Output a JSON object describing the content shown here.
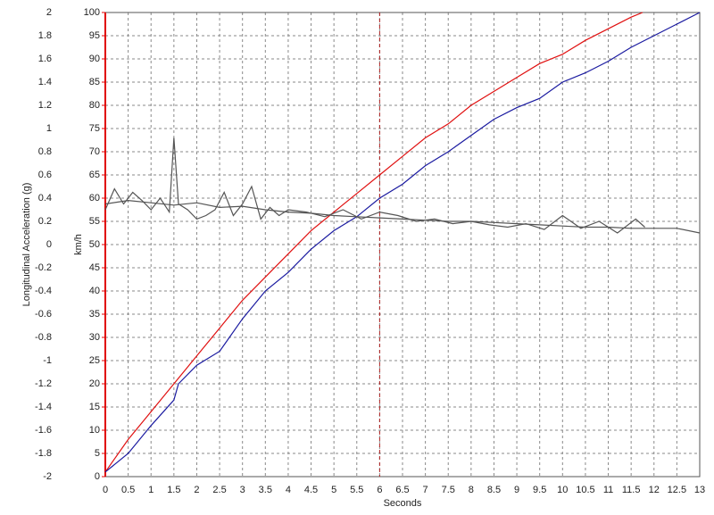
{
  "chart_data": {
    "type": "line",
    "y_label": "Longitudinal Acceleration (g)",
    "y2_label": "km/h",
    "x_label": "Seconds",
    "xlim": [
      0,
      13
    ],
    "ylim": [
      -2,
      2
    ],
    "y2lim": [
      0,
      100
    ],
    "xticks": [
      0,
      0.5,
      1,
      1.5,
      2,
      2.5,
      3,
      3.5,
      4,
      4.5,
      5,
      5.5,
      6,
      6.5,
      7,
      7.5,
      8,
      8.5,
      9,
      9.5,
      10,
      10.5,
      11,
      11.5,
      12,
      12.5,
      13
    ],
    "yticks": [
      -2,
      -1.8,
      -1.6,
      -1.4,
      -1.2,
      -1,
      -0.8,
      -0.6,
      -0.4,
      -0.2,
      0,
      0.2,
      0.4,
      0.6,
      0.8,
      1,
      1.2,
      1.4,
      1.6,
      1.8,
      2
    ],
    "y2ticks": [
      0,
      5,
      10,
      15,
      20,
      25,
      30,
      35,
      40,
      45,
      50,
      55,
      60,
      65,
      70,
      75,
      80,
      85,
      90,
      95,
      100
    ],
    "grid": true,
    "cursor": 6,
    "cursor_color": "#b02020",
    "y2_color": "#e00000",
    "series": [
      {
        "color": "#e01010",
        "axis": "y2",
        "x": [
          0,
          0.5,
          1,
          1.5,
          2,
          2.5,
          3,
          3.5,
          4,
          4.5,
          5,
          5.5,
          6,
          6.5,
          7,
          7.5,
          8,
          8.5,
          9,
          9.5,
          10,
          10.5,
          11,
          11.5,
          11.75
        ],
        "values": [
          1,
          8,
          14,
          20,
          26,
          32,
          38,
          43,
          48,
          53,
          57,
          61,
          65,
          69,
          73,
          76,
          80,
          83,
          86,
          89,
          91,
          94,
          96.5,
          99,
          100
        ]
      },
      {
        "color": "#1a1aa0",
        "axis": "y2",
        "x": [
          0,
          0.5,
          1,
          1.5,
          1.6,
          2,
          2.5,
          3,
          3.5,
          4,
          4.5,
          5,
          5.5,
          6,
          6.5,
          7,
          7.5,
          8,
          8.5,
          9,
          9.5,
          10,
          10.5,
          11,
          11.5,
          12,
          12.5,
          13
        ],
        "values": [
          1,
          5,
          11,
          16.5,
          20,
          24,
          27,
          34,
          40,
          44,
          49,
          53,
          56,
          60,
          63,
          67,
          70,
          73.5,
          77,
          79.5,
          81.5,
          85,
          87,
          89.5,
          92.5,
          95,
          97.5,
          100
        ]
      },
      {
        "color": "#555555",
        "x": [
          0,
          0.2,
          0.4,
          0.6,
          0.8,
          1,
          1.2,
          1.4,
          1.5,
          1.6,
          1.8,
          2,
          2.2,
          2.4,
          2.6,
          2.8,
          3,
          3.2,
          3.4,
          3.6,
          3.8,
          4,
          4.4,
          4.8,
          5.2,
          5.6,
          6,
          6.4,
          6.8,
          7.2,
          7.6,
          8,
          8.4,
          8.8,
          9.2,
          9.6,
          10,
          10.4,
          10.8,
          11.2,
          11.6,
          11.8
        ],
        "values": [
          0.3,
          0.48,
          0.35,
          0.45,
          0.38,
          0.3,
          0.4,
          0.28,
          0.92,
          0.35,
          0.3,
          0.22,
          0.25,
          0.3,
          0.45,
          0.25,
          0.35,
          0.5,
          0.22,
          0.32,
          0.25,
          0.3,
          0.28,
          0.24,
          0.3,
          0.22,
          0.28,
          0.25,
          0.2,
          0.22,
          0.18,
          0.2,
          0.17,
          0.15,
          0.18,
          0.13,
          0.25,
          0.14,
          0.2,
          0.1,
          0.22,
          0.15
        ]
      },
      {
        "color": "#555555",
        "x": [
          0,
          0.5,
          1,
          1.5,
          2,
          2.5,
          3,
          3.5,
          4,
          4.5,
          5,
          5.5,
          6,
          6.5,
          7,
          7.5,
          8,
          8.5,
          9,
          9.5,
          10,
          10.5,
          11,
          11.5,
          12,
          12.5,
          13
        ],
        "values": [
          0.35,
          0.38,
          0.36,
          0.34,
          0.36,
          0.32,
          0.33,
          0.3,
          0.28,
          0.27,
          0.25,
          0.24,
          0.23,
          0.22,
          0.21,
          0.2,
          0.2,
          0.19,
          0.18,
          0.17,
          0.16,
          0.15,
          0.15,
          0.14,
          0.14,
          0.14,
          0.1
        ]
      }
    ]
  }
}
